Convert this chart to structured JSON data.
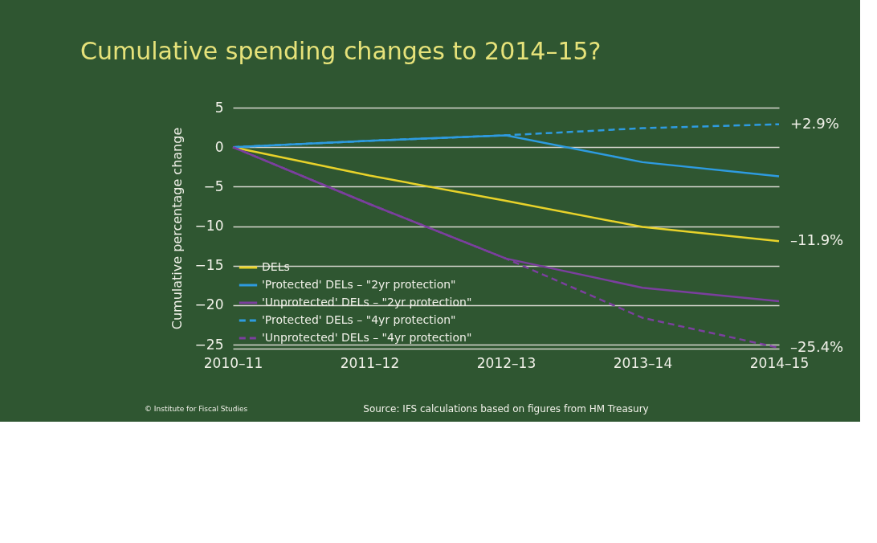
{
  "chart_data": {
    "type": "line",
    "title": "Cumulative spending changes to 2014–15?",
    "ylabel": "Cumulative percentage change",
    "categories": [
      "2010–11",
      "2011–12",
      "2012–13",
      "2013–14",
      "2014–15"
    ],
    "series": [
      {
        "name": "DELs",
        "color": "#e8d22a",
        "values": [
          0,
          -3.6,
          -6.8,
          -10.1,
          -11.9
        ],
        "line_style": "solid"
      },
      {
        "name": "'Protected' DELs – \"2yr protection\"",
        "color": "#2e9be0",
        "values": [
          0,
          0.8,
          1.5,
          -1.9,
          -3.7
        ],
        "line_style": "solid"
      },
      {
        "name": "'Unprotected' DELs – \"2yr protection\"",
        "color": "#7b3f9e",
        "values": [
          0,
          -7.2,
          -14.1,
          -17.8,
          -19.5
        ],
        "line_style": "solid"
      },
      {
        "name": "'Protected' DELs – \"4yr protection\"",
        "color": "#2e9be0",
        "values": [
          0,
          0.8,
          1.5,
          2.4,
          2.9
        ],
        "line_style": "dashed"
      },
      {
        "name": "'Unprotected' DELs – \"4yr protection\"",
        "color": "#7b3f9e",
        "values": [
          0,
          -7.2,
          -14.1,
          -21.6,
          -25.4
        ],
        "line_style": "dashed"
      }
    ],
    "ylim": [
      -25.5,
      5
    ],
    "yticks": [
      -25,
      -20,
      -15,
      -10,
      -5,
      0,
      5
    ],
    "grid": "y",
    "legend": "bottom left",
    "marker": "none",
    "annotations": [
      {
        "text": "+2.9%",
        "x": "2014–15",
        "y": 2.9
      },
      {
        "text": "–11.9%",
        "x": "2014–15",
        "y": -11.9
      },
      {
        "text": "–25.4%",
        "x": "2014–15",
        "y": -25.4
      },
      "Source: IFS calculations based on figures from HM Treasury",
      "© Institute for Fiscal Studies"
    ]
  }
}
